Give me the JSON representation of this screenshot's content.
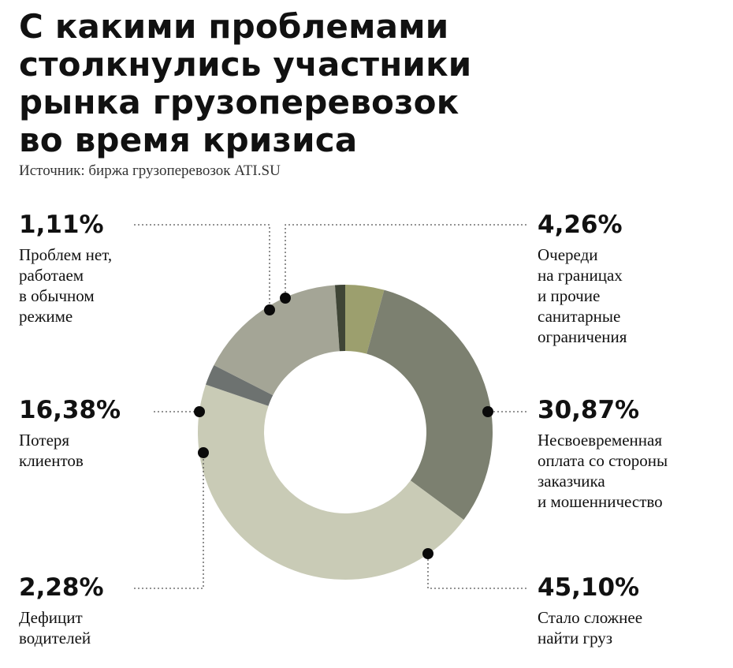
{
  "header": {
    "title": "С какими проблемами\nстолкнулись участники\nрынка грузоперевозок\nво время кризиса",
    "source": "Источник: биржа грузоперевозок ATI.SU"
  },
  "chart_data": {
    "type": "pie",
    "style": "donut",
    "unit": "%",
    "start": "top-center, clockwise",
    "slices": [
      {
        "key": "queues",
        "value": 4.26,
        "label": "4,26%",
        "text": "Очереди\nна границах\nи прочие\nсанитарные\nограничения",
        "color": "#9c9f6e"
      },
      {
        "key": "late_pay",
        "value": 30.87,
        "label": "30,87%",
        "text": "Несвоевременная\nоплата со стороны\nзаказчика\nи мошенничество",
        "color": "#7c8070"
      },
      {
        "key": "cargo",
        "value": 45.1,
        "label": "45,10%",
        "text": "Стало сложнее\nнайти груз",
        "color": "#c9cbb6"
      },
      {
        "key": "drivers",
        "value": 2.28,
        "label": "2,28%",
        "text": "Дефицит\nводителей",
        "color": "#6d7270"
      },
      {
        "key": "clients",
        "value": 16.38,
        "label": "16,38%",
        "text": "Потеря\nклиентов",
        "color": "#a4a596"
      },
      {
        "key": "none",
        "value": 1.11,
        "label": "1,11%",
        "text": "Проблем нет,\nработаем\nв обычном\nрежиме",
        "color": "#3f4536"
      }
    ]
  }
}
